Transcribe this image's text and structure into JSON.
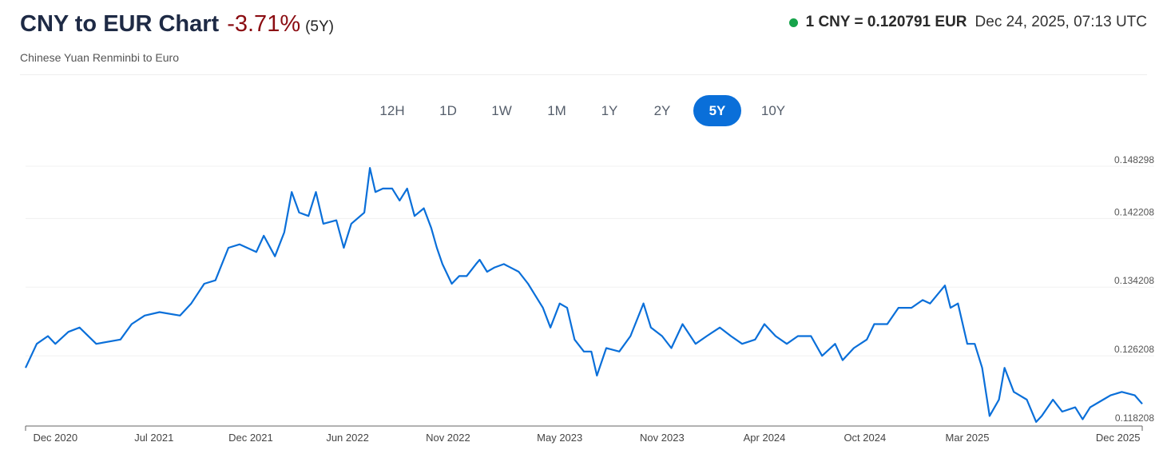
{
  "header": {
    "title": "CNY to EUR Chart",
    "change": "-3.71%",
    "period": "(5Y)",
    "subtitle": "Chinese Yuan Renminbi to Euro",
    "rate": "1 CNY = 0.120791 EUR",
    "timestamp": "Dec 24, 2025, 07:13 UTC",
    "status_color": "#16a34a"
  },
  "tabs": [
    {
      "label": "12H",
      "active": false
    },
    {
      "label": "1D",
      "active": false
    },
    {
      "label": "1W",
      "active": false
    },
    {
      "label": "1M",
      "active": false
    },
    {
      "label": "1Y",
      "active": false
    },
    {
      "label": "2Y",
      "active": false
    },
    {
      "label": "5Y",
      "active": true
    },
    {
      "label": "10Y",
      "active": false
    }
  ],
  "chart_data": {
    "type": "line",
    "title": "CNY to EUR Chart",
    "x_unit": "months since late Dec 2020",
    "xlim": [
      0,
      60
    ],
    "ylim": [
      0.118208,
      0.148298
    ],
    "line_color": "#0a6fd9",
    "yticks": [
      {
        "value": 0.148298,
        "label": "0.148298"
      },
      {
        "value": 0.142208,
        "label": "0.142208"
      },
      {
        "value": 0.134208,
        "label": "0.134208"
      },
      {
        "value": 0.126208,
        "label": "0.126208"
      },
      {
        "value": 0.118208,
        "label": "0.118208"
      }
    ],
    "xticks": [
      {
        "value": 1.6,
        "label": "Dec 2020"
      },
      {
        "value": 6.9,
        "label": "Jul 2021"
      },
      {
        "value": 12.1,
        "label": "Dec 2021"
      },
      {
        "value": 17.3,
        "label": "Jun 2022"
      },
      {
        "value": 22.7,
        "label": "Nov 2022"
      },
      {
        "value": 28.7,
        "label": "May 2023"
      },
      {
        "value": 34.2,
        "label": "Nov 2023"
      },
      {
        "value": 39.7,
        "label": "Apr 2024"
      },
      {
        "value": 45.1,
        "label": "Oct 2024"
      },
      {
        "value": 50.6,
        "label": "Mar 2025"
      },
      {
        "value": 58.7,
        "label": "Dec 2025"
      }
    ],
    "series": [
      {
        "name": "CNY/EUR",
        "points": [
          [
            0,
            0.1248
          ],
          [
            0.6,
            0.1276
          ],
          [
            1.2,
            0.1285
          ],
          [
            1.6,
            0.1276
          ],
          [
            2.3,
            0.129
          ],
          [
            2.9,
            0.1295
          ],
          [
            3.8,
            0.1276
          ],
          [
            5.1,
            0.1281
          ],
          [
            5.7,
            0.1299
          ],
          [
            6.4,
            0.1309
          ],
          [
            7.2,
            0.1313
          ],
          [
            8.3,
            0.1309
          ],
          [
            8.9,
            0.1323
          ],
          [
            9.6,
            0.1346
          ],
          [
            10.2,
            0.135
          ],
          [
            10.9,
            0.1388
          ],
          [
            11.5,
            0.1392
          ],
          [
            12.4,
            0.1383
          ],
          [
            12.8,
            0.1402
          ],
          [
            13.4,
            0.1378
          ],
          [
            13.9,
            0.1406
          ],
          [
            14.3,
            0.1453
          ],
          [
            14.7,
            0.1429
          ],
          [
            15.2,
            0.1425
          ],
          [
            15.6,
            0.1453
          ],
          [
            16.0,
            0.1416
          ],
          [
            16.7,
            0.142
          ],
          [
            17.1,
            0.1388
          ],
          [
            17.5,
            0.1416
          ],
          [
            18.2,
            0.1429
          ],
          [
            18.5,
            0.1481
          ],
          [
            18.8,
            0.1453
          ],
          [
            19.2,
            0.1457
          ],
          [
            19.7,
            0.1457
          ],
          [
            20.1,
            0.1443
          ],
          [
            20.5,
            0.1457
          ],
          [
            20.9,
            0.1425
          ],
          [
            21.4,
            0.1434
          ],
          [
            21.8,
            0.1411
          ],
          [
            22.1,
            0.1388
          ],
          [
            22.4,
            0.1369
          ],
          [
            22.9,
            0.1346
          ],
          [
            23.3,
            0.1355
          ],
          [
            23.7,
            0.1355
          ],
          [
            24.2,
            0.1369
          ],
          [
            24.4,
            0.1374
          ],
          [
            24.8,
            0.136
          ],
          [
            25.2,
            0.1365
          ],
          [
            25.7,
            0.1369
          ],
          [
            26.5,
            0.136
          ],
          [
            27.0,
            0.1346
          ],
          [
            27.4,
            0.1332
          ],
          [
            27.8,
            0.1318
          ],
          [
            28.2,
            0.1295
          ],
          [
            28.7,
            0.1323
          ],
          [
            29.1,
            0.1318
          ],
          [
            29.5,
            0.1281
          ],
          [
            30.0,
            0.1267
          ],
          [
            30.4,
            0.1267
          ],
          [
            30.7,
            0.1239
          ],
          [
            31.2,
            0.1271
          ],
          [
            31.9,
            0.1267
          ],
          [
            32.5,
            0.1285
          ],
          [
            33.2,
            0.1323
          ],
          [
            33.6,
            0.1295
          ],
          [
            34.2,
            0.1285
          ],
          [
            34.7,
            0.1271
          ],
          [
            35.3,
            0.1299
          ],
          [
            36.0,
            0.1276
          ],
          [
            36.6,
            0.1285
          ],
          [
            37.3,
            0.1295
          ],
          [
            37.9,
            0.1285
          ],
          [
            38.5,
            0.1276
          ],
          [
            39.2,
            0.1281
          ],
          [
            39.7,
            0.1299
          ],
          [
            40.3,
            0.1285
          ],
          [
            40.9,
            0.1276
          ],
          [
            41.5,
            0.1285
          ],
          [
            42.2,
            0.1285
          ],
          [
            42.8,
            0.1262
          ],
          [
            43.5,
            0.1276
          ],
          [
            43.9,
            0.1257
          ],
          [
            44.5,
            0.1271
          ],
          [
            45.2,
            0.1281
          ],
          [
            45.6,
            0.1299
          ],
          [
            46.3,
            0.1299
          ],
          [
            46.9,
            0.1318
          ],
          [
            47.6,
            0.1318
          ],
          [
            48.2,
            0.1327
          ],
          [
            48.6,
            0.1323
          ],
          [
            49.4,
            0.1344
          ],
          [
            49.7,
            0.1318
          ],
          [
            50.1,
            0.1323
          ],
          [
            50.6,
            0.1276
          ],
          [
            51.0,
            0.1276
          ],
          [
            51.4,
            0.1248
          ],
          [
            51.8,
            0.1192
          ],
          [
            52.3,
            0.1211
          ],
          [
            52.6,
            0.1248
          ],
          [
            53.1,
            0.122
          ],
          [
            53.8,
            0.1211
          ],
          [
            54.3,
            0.1185
          ],
          [
            54.6,
            0.1192
          ],
          [
            55.2,
            0.1211
          ],
          [
            55.7,
            0.1197
          ],
          [
            56.4,
            0.1202
          ],
          [
            56.8,
            0.1188
          ],
          [
            57.2,
            0.1202
          ],
          [
            57.9,
            0.1211
          ],
          [
            58.3,
            0.1216
          ],
          [
            58.9,
            0.122
          ],
          [
            59.6,
            0.1216
          ],
          [
            60.0,
            0.1206
          ]
        ]
      }
    ]
  }
}
